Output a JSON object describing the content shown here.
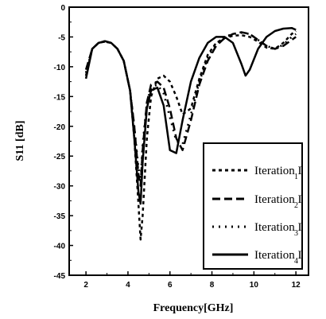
{
  "chart_data": {
    "type": "line",
    "xlabel": "Frequency[GHz]",
    "ylabel": "S11 [dB]",
    "xlim": [
      1.2,
      12.6
    ],
    "ylim": [
      -45,
      0
    ],
    "xticks": [
      2,
      4,
      6,
      8,
      10,
      12
    ],
    "yticks": [
      0,
      -5,
      -10,
      -15,
      -20,
      -25,
      -30,
      -35,
      -40,
      -45
    ],
    "legend_position": "bottom-right",
    "series": [
      {
        "legend_base": "Iteration I",
        "legend_sub": "1",
        "dash": "4,4",
        "x": [
          2.0,
          2.3,
          2.6,
          2.9,
          3.2,
          3.5,
          3.8,
          4.1,
          4.3,
          4.5,
          4.6,
          4.7,
          4.9,
          5.1,
          5.4,
          5.7,
          6.0,
          6.3,
          6.6,
          7.0,
          7.4,
          7.8,
          8.2,
          8.6,
          9.0,
          9.4,
          9.8,
          10.2,
          10.6,
          11.0,
          11.4,
          11.8,
          12.0
        ],
        "y": [
          -11.5,
          -7.0,
          -6.0,
          -5.8,
          -6.0,
          -7.0,
          -9.0,
          -14.0,
          -22.0,
          -33.0,
          -39.0,
          -35.0,
          -22.0,
          -15.0,
          -12.0,
          -11.5,
          -12.5,
          -15.0,
          -18.0,
          -17.0,
          -12.0,
          -8.0,
          -6.0,
          -5.2,
          -4.8,
          -4.7,
          -5.0,
          -5.8,
          -6.8,
          -7.0,
          -6.0,
          -4.5,
          -4.0
        ]
      },
      {
        "legend_base": "Iteration I",
        "legend_sub": "2",
        "dash": "10,5",
        "x": [
          2.0,
          2.3,
          2.6,
          2.9,
          3.2,
          3.5,
          3.8,
          4.1,
          4.3,
          4.5,
          4.6,
          4.7,
          4.9,
          5.1,
          5.4,
          5.7,
          6.0,
          6.3,
          6.6,
          7.0,
          7.4,
          7.8,
          8.2,
          8.6,
          9.0,
          9.4,
          9.8,
          10.2,
          10.6,
          11.0,
          11.4,
          11.8,
          12.0
        ],
        "y": [
          -10.5,
          -7.0,
          -6.0,
          -5.7,
          -6.0,
          -7.0,
          -9.0,
          -14.0,
          -20.0,
          -28.0,
          -30.0,
          -24.0,
          -16.0,
          -13.0,
          -12.5,
          -13.5,
          -17.0,
          -22.0,
          -24.0,
          -19.0,
          -13.0,
          -9.0,
          -6.5,
          -5.2,
          -4.5,
          -4.2,
          -4.5,
          -5.5,
          -6.5,
          -7.0,
          -6.5,
          -5.5,
          -5.0
        ]
      },
      {
        "legend_base": "Iteration I",
        "legend_sub": "3",
        "dash": "2,6",
        "x": [
          2.0,
          2.3,
          2.6,
          2.9,
          3.2,
          3.5,
          3.8,
          4.1,
          4.3,
          4.5,
          4.6,
          4.7,
          4.9,
          5.1,
          5.4,
          5.7,
          6.0,
          6.3,
          6.6,
          7.0,
          7.4,
          7.8,
          8.2,
          8.6,
          9.0,
          9.4,
          9.8,
          10.2,
          10.6,
          11.0,
          11.4,
          11.8,
          12.0
        ],
        "y": [
          -11.0,
          -7.0,
          -6.0,
          -5.8,
          -6.0,
          -7.0,
          -9.0,
          -14.0,
          -20.0,
          -27.0,
          -29.0,
          -23.0,
          -16.0,
          -13.5,
          -13.0,
          -14.5,
          -18.5,
          -22.5,
          -23.0,
          -18.0,
          -12.5,
          -8.5,
          -6.2,
          -5.0,
          -4.5,
          -4.3,
          -4.5,
          -5.5,
          -6.5,
          -7.0,
          -6.3,
          -5.0,
          -4.5
        ]
      },
      {
        "legend_base": "Iteration I",
        "legend_sub": "4",
        "dash": "",
        "x": [
          2.0,
          2.3,
          2.6,
          2.9,
          3.2,
          3.5,
          3.8,
          4.1,
          4.3,
          4.5,
          4.6,
          4.7,
          4.9,
          5.1,
          5.4,
          5.7,
          6.0,
          6.3,
          6.6,
          7.0,
          7.4,
          7.8,
          8.2,
          8.6,
          9.0,
          9.4,
          9.6,
          9.8,
          10.2,
          10.6,
          11.0,
          11.4,
          11.8,
          12.0
        ],
        "y": [
          -12.0,
          -7.0,
          -6.0,
          -5.7,
          -6.0,
          -7.0,
          -9.0,
          -14.0,
          -22.0,
          -31.0,
          -33.0,
          -26.0,
          -17.0,
          -14.0,
          -13.5,
          -16.5,
          -24.0,
          -24.5,
          -19.0,
          -12.5,
          -8.5,
          -6.0,
          -5.0,
          -5.0,
          -6.0,
          -9.5,
          -11.5,
          -10.5,
          -7.0,
          -5.0,
          -4.0,
          -3.6,
          -3.5,
          -3.8
        ]
      }
    ]
  }
}
